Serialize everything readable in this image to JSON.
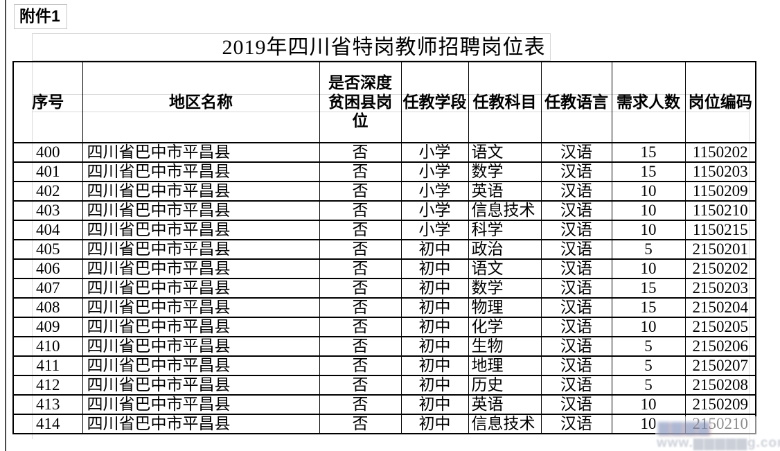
{
  "page": {
    "attachment_label": "附件1",
    "title": "2019年四川省特岗教师招聘岗位表"
  },
  "table": {
    "headers": [
      "序号",
      "地区名称",
      "是否深度贫困县岗位",
      "任教学段",
      "任教科目",
      "任教语言",
      "需求人数",
      "岗位编码"
    ],
    "rows": [
      [
        "400",
        "四川省巴中市平昌县",
        "否",
        "小学",
        "语文",
        "汉语",
        "15",
        "1150202"
      ],
      [
        "401",
        "四川省巴中市平昌县",
        "否",
        "小学",
        "数学",
        "汉语",
        "15",
        "1150203"
      ],
      [
        "402",
        "四川省巴中市平昌县",
        "否",
        "小学",
        "英语",
        "汉语",
        "10",
        "1150209"
      ],
      [
        "403",
        "四川省巴中市平昌县",
        "否",
        "小学",
        "信息技术",
        "汉语",
        "10",
        "1150210"
      ],
      [
        "404",
        "四川省巴中市平昌县",
        "否",
        "小学",
        "科学",
        "汉语",
        "10",
        "1150215"
      ],
      [
        "405",
        "四川省巴中市平昌县",
        "否",
        "初中",
        "政治",
        "汉语",
        "5",
        "2150201"
      ],
      [
        "406",
        "四川省巴中市平昌县",
        "否",
        "初中",
        "语文",
        "汉语",
        "10",
        "2150202"
      ],
      [
        "407",
        "四川省巴中市平昌县",
        "否",
        "初中",
        "数学",
        "汉语",
        "15",
        "2150203"
      ],
      [
        "408",
        "四川省巴中市平昌县",
        "否",
        "初中",
        "物理",
        "汉语",
        "15",
        "2150204"
      ],
      [
        "409",
        "四川省巴中市平昌县",
        "否",
        "初中",
        "化学",
        "汉语",
        "10",
        "2150205"
      ],
      [
        "410",
        "四川省巴中市平昌县",
        "否",
        "初中",
        "生物",
        "汉语",
        "5",
        "2150206"
      ],
      [
        "411",
        "四川省巴中市平昌县",
        "否",
        "初中",
        "地理",
        "汉语",
        "5",
        "2150207"
      ],
      [
        "412",
        "四川省巴中市平昌县",
        "否",
        "初中",
        "历史",
        "汉语",
        "5",
        "2150208"
      ],
      [
        "413",
        "四川省巴中市平昌县",
        "否",
        "初中",
        "英语",
        "汉语",
        "10",
        "2150209"
      ],
      [
        "414",
        "四川省巴中市平昌县",
        "否",
        "初中",
        "信息技术",
        "汉语",
        "10",
        "2150210"
      ]
    ]
  },
  "watermark": {
    "smudge": "▆▆▆▆",
    "url_text": "www.▆▆▆▆▆g.com"
  },
  "colors": {
    "table_border": "#000000",
    "gridline": "#d9d9d9",
    "page_edge": "#4a4a4a",
    "watermark_text": "#c3c8d2"
  }
}
